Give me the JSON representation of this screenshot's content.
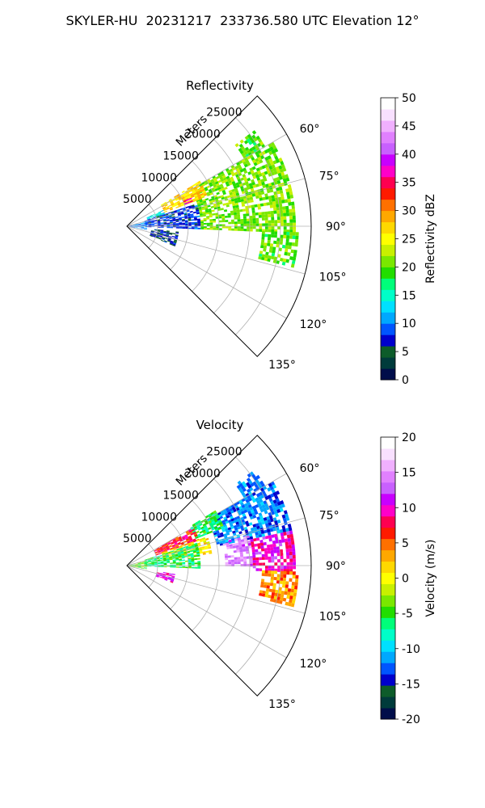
{
  "figure_title": "SKYLER-HU  20231217  233736.580 UTC Elevation 12°",
  "chart_data": [
    {
      "type": "heatmap",
      "title": "Reflectivity",
      "projection": "polar-sector",
      "theta_direction": "clockwise, 0° at north",
      "theta_range_deg": [
        45,
        135
      ],
      "theta_ticks": [
        "60°",
        "75°",
        "90°",
        "105°",
        "120°",
        "135°"
      ],
      "r_label": "Meters",
      "r_range": [
        0,
        30000
      ],
      "r_ticks": [
        "5000",
        "10000",
        "15000",
        "20000",
        "25000"
      ],
      "grid": true,
      "colorbar": {
        "label": "Reflectivity dBZ",
        "range": [
          0,
          50
        ],
        "ticks": [
          "0",
          "5",
          "10",
          "15",
          "20",
          "25",
          "30",
          "35",
          "40",
          "45",
          "50"
        ],
        "colors": [
          "#000d4a",
          "#003b3b",
          "#0d5c2a",
          "#0000cc",
          "#0055ff",
          "#00a8ff",
          "#00e0ff",
          "#00ffc8",
          "#00ff7a",
          "#22dd00",
          "#7ae800",
          "#c8f000",
          "#ffff00",
          "#ffd800",
          "#ffa800",
          "#ff7000",
          "#ff1a00",
          "#ff0050",
          "#ff00c8",
          "#c800ff",
          "#c860ff",
          "#e080ff",
          "#f0b0ff",
          "#f8e0ff",
          "#ffffff"
        ]
      },
      "echo_regions": [
        {
          "theta": [
            53,
            60
          ],
          "r": [
            22000,
            26000
          ],
          "value": 20
        },
        {
          "theta": [
            60,
            92
          ],
          "r": [
            12000,
            27500
          ],
          "value": 21
        },
        {
          "theta": [
            92,
            104
          ],
          "r": [
            22000,
            28000
          ],
          "value": 20
        },
        {
          "theta": [
            58,
            70
          ],
          "r": [
            6500,
            14000
          ],
          "value": 27
        },
        {
          "theta": [
            66,
            72
          ],
          "r": [
            3500,
            6500
          ],
          "value": 14
        },
        {
          "theta": [
            72,
            92
          ],
          "r": [
            3000,
            12000
          ],
          "value": 8
        },
        {
          "theta": [
            74,
            100
          ],
          "r": [
            300,
            3200
          ],
          "value": 10
        },
        {
          "theta": [
            96,
            112
          ],
          "r": [
            4000,
            8500
          ],
          "value": 6
        },
        {
          "theta": [
            66,
            69
          ],
          "r": [
            10000,
            11500
          ],
          "value": 38
        }
      ]
    },
    {
      "type": "heatmap",
      "title": "Velocity",
      "projection": "polar-sector",
      "theta_direction": "clockwise, 0° at north",
      "theta_range_deg": [
        45,
        135
      ],
      "theta_ticks": [
        "60°",
        "75°",
        "90°",
        "105°",
        "120°",
        "135°"
      ],
      "r_label": "Meters",
      "r_range": [
        0,
        30000
      ],
      "r_ticks": [
        "5000",
        "10000",
        "15000",
        "20000",
        "25000"
      ],
      "grid": true,
      "colorbar": {
        "label": "Velocity (m/s)",
        "range": [
          -20,
          20
        ],
        "ticks": [
          "-20",
          "-15",
          "-10",
          "-5",
          "0",
          "5",
          "10",
          "15",
          "20"
        ],
        "colors": [
          "#000d4a",
          "#003b3b",
          "#0d5c2a",
          "#0000cc",
          "#0055ff",
          "#00a8ff",
          "#00e0ff",
          "#00ffc8",
          "#00ff7a",
          "#22dd00",
          "#7ae800",
          "#c8f000",
          "#ffff00",
          "#ffd800",
          "#ffa800",
          "#ff7000",
          "#ff1a00",
          "#ff0050",
          "#ff00c8",
          "#c800ff",
          "#c860ff",
          "#e080ff",
          "#f0b0ff",
          "#f8e0ff",
          "#ffffff"
        ]
      },
      "echo_regions": [
        {
          "theta": [
            53,
            60
          ],
          "r": [
            22000,
            26000
          ],
          "value": -12
        },
        {
          "theta": [
            60,
            78
          ],
          "r": [
            15000,
            27500
          ],
          "value": -12
        },
        {
          "theta": [
            58,
            68
          ],
          "r": [
            12000,
            17000
          ],
          "value": -6
        },
        {
          "theta": [
            60,
            70
          ],
          "r": [
            5000,
            12500
          ],
          "value": 7
        },
        {
          "theta": [
            70,
            82
          ],
          "r": [
            6000,
            14000
          ],
          "value": 1
        },
        {
          "theta": [
            76,
            90
          ],
          "r": [
            16000,
            20500
          ],
          "value": 14
        },
        {
          "theta": [
            78,
            92
          ],
          "r": [
            20500,
            27500
          ],
          "value": 10
        },
        {
          "theta": [
            92,
            104
          ],
          "r": [
            22000,
            28000
          ],
          "value": 4
        },
        {
          "theta": [
            72,
            92
          ],
          "r": [
            3000,
            12000
          ],
          "value": -6
        },
        {
          "theta": [
            74,
            100
          ],
          "r": [
            300,
            3200
          ],
          "value": -4
        },
        {
          "theta": [
            100,
            110
          ],
          "r": [
            5000,
            8000
          ],
          "value": 10
        }
      ]
    }
  ]
}
